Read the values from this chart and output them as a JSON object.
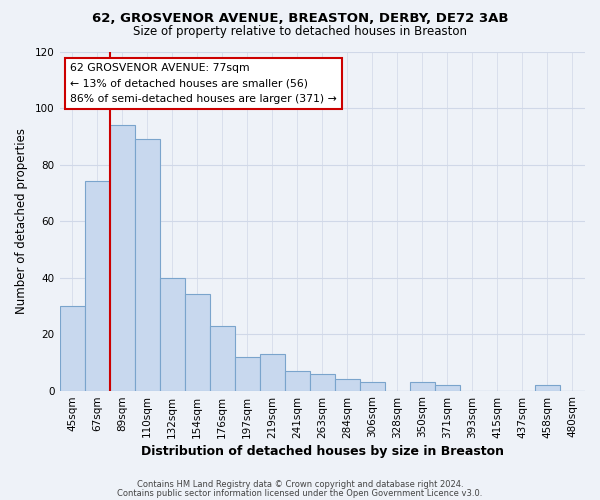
{
  "title1": "62, GROSVENOR AVENUE, BREASTON, DERBY, DE72 3AB",
  "title2": "Size of property relative to detached houses in Breaston",
  "xlabel": "Distribution of detached houses by size in Breaston",
  "ylabel": "Number of detached properties",
  "bar_labels": [
    "45sqm",
    "67sqm",
    "89sqm",
    "110sqm",
    "132sqm",
    "154sqm",
    "176sqm",
    "197sqm",
    "219sqm",
    "241sqm",
    "263sqm",
    "284sqm",
    "306sqm",
    "328sqm",
    "350sqm",
    "371sqm",
    "393sqm",
    "415sqm",
    "437sqm",
    "458sqm",
    "480sqm"
  ],
  "bar_values": [
    30,
    74,
    94,
    89,
    40,
    34,
    23,
    12,
    13,
    7,
    6,
    4,
    3,
    0,
    3,
    2,
    0,
    0,
    0,
    2,
    0
  ],
  "bar_color": "#c8d8ee",
  "bar_edge_color": "#7aa4cc",
  "vline_x": 1.5,
  "vline_color": "#cc0000",
  "ylim": [
    0,
    120
  ],
  "yticks": [
    0,
    20,
    40,
    60,
    80,
    100,
    120
  ],
  "annotation_title": "62 GROSVENOR AVENUE: 77sqm",
  "annotation_line1": "← 13% of detached houses are smaller (56)",
  "annotation_line2": "86% of semi-detached houses are larger (371) →",
  "annotation_box_color": "#ffffff",
  "annotation_box_edge": "#cc0000",
  "footer1": "Contains HM Land Registry data © Crown copyright and database right 2024.",
  "footer2": "Contains public sector information licensed under the Open Government Licence v3.0.",
  "background_color": "#eef2f8",
  "grid_color": "#d0d8e8",
  "title1_fontsize": 9.5,
  "title2_fontsize": 8.5,
  "xlabel_fontsize": 9,
  "ylabel_fontsize": 8.5,
  "tick_fontsize": 7.5,
  "footer_fontsize": 6.0
}
